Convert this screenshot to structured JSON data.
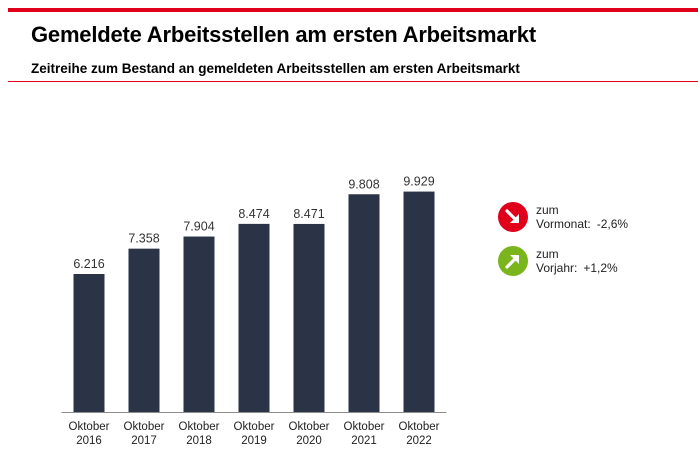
{
  "header": {
    "title": "Gemeldete Arbeitsstellen am ersten Arbeitsmarkt",
    "subtitle": "Zeitreihe zum Bestand an gemeldeten Arbeitsstellen am ersten Arbeitsmarkt"
  },
  "chart_data": {
    "type": "bar",
    "categories": [
      [
        "Oktober",
        "2016"
      ],
      [
        "Oktober",
        "2017"
      ],
      [
        "Oktober",
        "2018"
      ],
      [
        "Oktober",
        "2019"
      ],
      [
        "Oktober",
        "2020"
      ],
      [
        "Oktober",
        "2021"
      ],
      [
        "Oktober",
        "2022"
      ]
    ],
    "values": [
      6216,
      7358,
      7904,
      8474,
      8471,
      9808,
      9929
    ],
    "value_labels": [
      "6.216",
      "7.358",
      "7.904",
      "8.474",
      "8.471",
      "9.808",
      "9.929"
    ],
    "ylim": [
      0,
      10000
    ],
    "grid": false,
    "bar_color": "#2b3346"
  },
  "indicators": [
    {
      "line1": "zum",
      "label": "Vormonat:",
      "value": "-2,6%",
      "direction": "down",
      "color": "#e0001b",
      "icon": "arrow-down-right-icon"
    },
    {
      "line1": "zum",
      "label": "Vorjahr:",
      "value": "+1,2%",
      "direction": "up",
      "color": "#7ab51d",
      "icon": "arrow-up-right-icon"
    }
  ]
}
